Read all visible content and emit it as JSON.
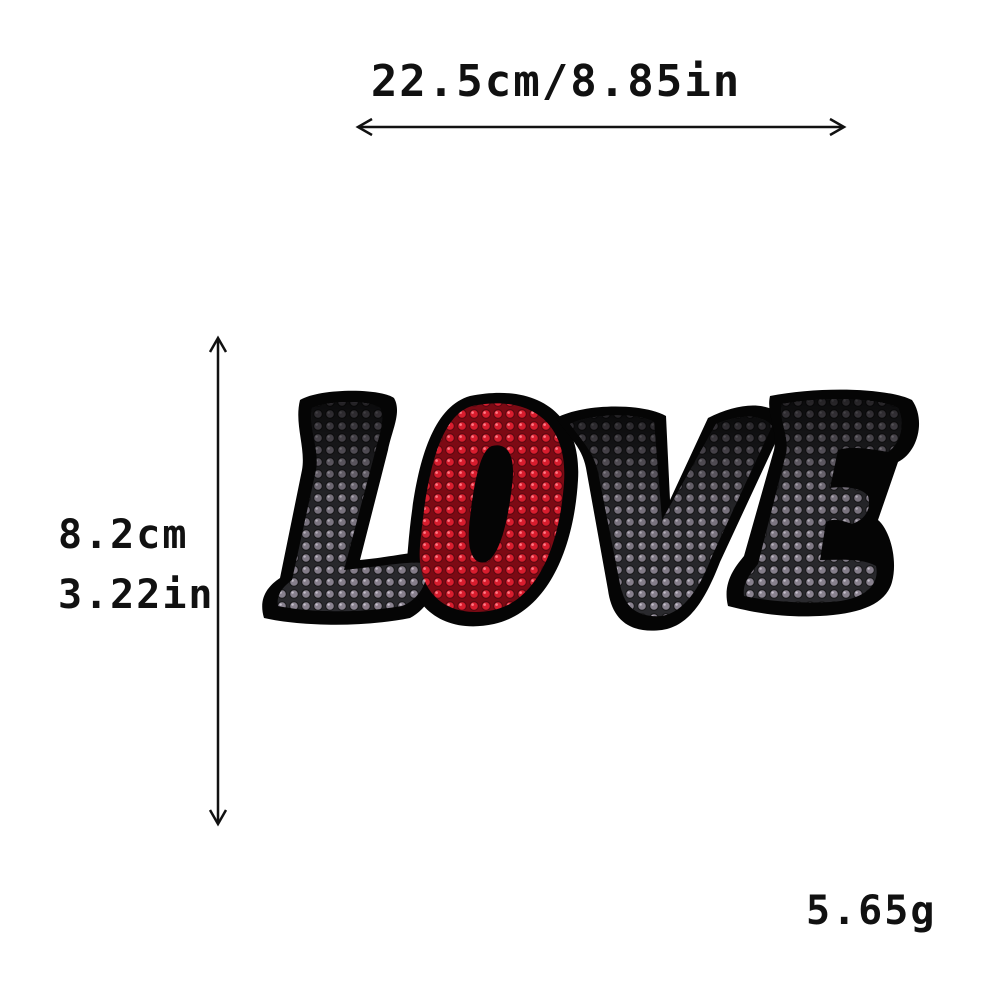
{
  "dimensions": {
    "width_label": "22.5cm/8.85in",
    "height_cm_label": "8.2cm",
    "height_in_label": "3.22in"
  },
  "weight_label": "5.65g",
  "patch": {
    "text": "LOVE",
    "colors": {
      "outline": "#0a0a0a",
      "sequin_dark": "#141414",
      "sequin_grey": "#7a7280",
      "sequin_red": "#d81d2e",
      "sequin_red_dark": "#7c0a14"
    }
  },
  "arrow_color": "#111111"
}
